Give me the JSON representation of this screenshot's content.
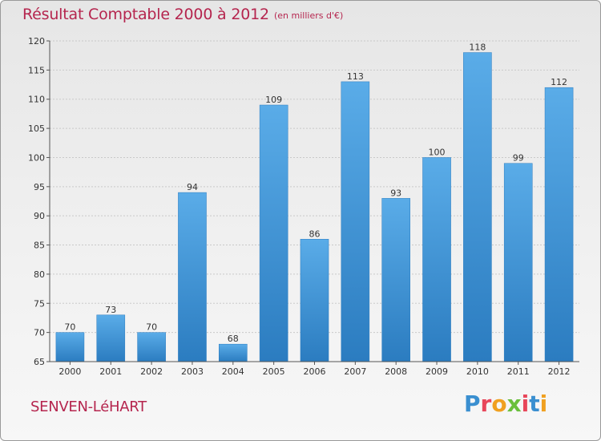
{
  "header": {
    "title": "Résultat Comptable 2000 à 2012",
    "subtitle": "(en milliers d'€)"
  },
  "footer": {
    "commune": "SENVEN-LéHART",
    "logo": "Proxiti",
    "logo_colors": [
      "#3a8fd0",
      "#e8465a",
      "#f0a020",
      "#6abf3c",
      "#e8465a",
      "#3a8fd0",
      "#f0a020"
    ]
  },
  "colors": {
    "bar": "#3d95d6",
    "bar_light": "#5aace8",
    "bar_dark": "#2b7cc0",
    "accent": "#b5254e"
  },
  "chart_data": {
    "type": "bar",
    "title": "Résultat Comptable 2000 à 2012",
    "subtitle": "(en milliers d'€)",
    "categories": [
      "2000",
      "2001",
      "2002",
      "2003",
      "2004",
      "2005",
      "2006",
      "2007",
      "2008",
      "2009",
      "2010",
      "2011",
      "2012"
    ],
    "values": [
      70,
      73,
      70,
      94,
      68,
      109,
      86,
      113,
      93,
      100,
      118,
      99,
      112
    ],
    "ylim": [
      65,
      120
    ],
    "yticks": [
      65,
      70,
      75,
      80,
      85,
      90,
      95,
      100,
      105,
      110,
      115,
      120
    ],
    "grid": true
  }
}
